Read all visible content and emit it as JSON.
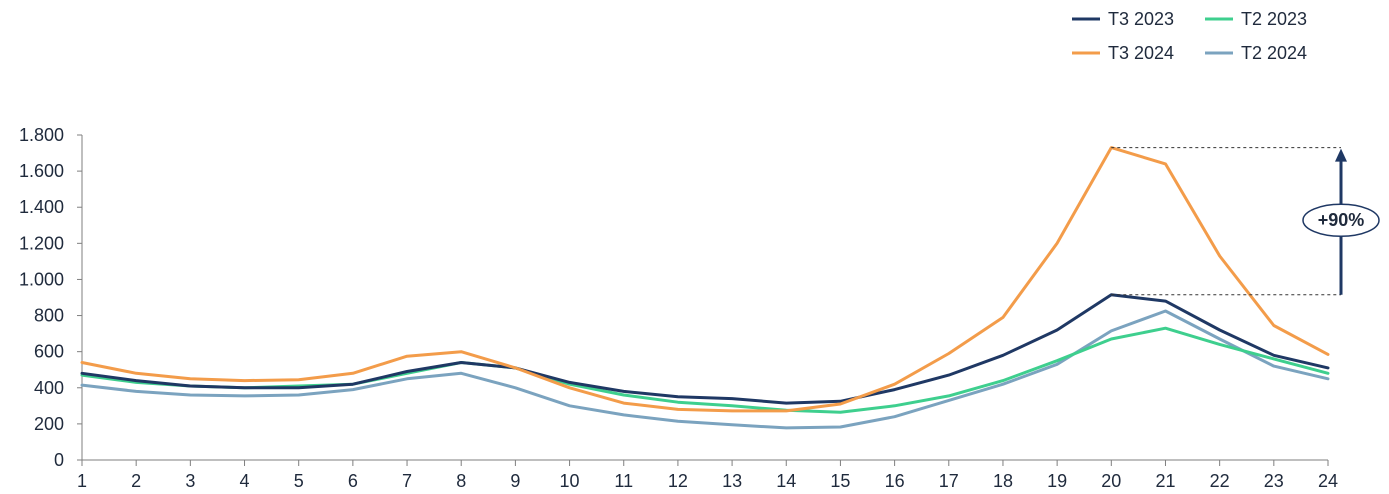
{
  "chart_data": {
    "type": "line",
    "title": "",
    "xlabel": "",
    "ylabel": "",
    "x": [
      1,
      2,
      3,
      4,
      5,
      6,
      7,
      8,
      9,
      10,
      11,
      12,
      13,
      14,
      15,
      16,
      17,
      18,
      19,
      20,
      21,
      22,
      23,
      24
    ],
    "x_tick_labels": [
      "1",
      "2",
      "3",
      "4",
      "5",
      "6",
      "7",
      "8",
      "9",
      "10",
      "11",
      "12",
      "13",
      "14",
      "15",
      "16",
      "17",
      "18",
      "19",
      "20",
      "21",
      "22",
      "23",
      "24"
    ],
    "ylim": [
      0,
      1800
    ],
    "y_ticks": [
      0,
      200,
      400,
      600,
      800,
      1000,
      1200,
      1400,
      1600,
      1800
    ],
    "y_tick_labels": [
      "0",
      "200",
      "400",
      "600",
      "800",
      "1.000",
      "1.200",
      "1.400",
      "1.600",
      "1.800"
    ],
    "grid": false,
    "legend_position": "top-right",
    "series": [
      {
        "name": "T3 2023",
        "color": "#1f3864",
        "values": [
          480,
          440,
          410,
          400,
          400,
          420,
          490,
          540,
          510,
          430,
          380,
          350,
          340,
          315,
          325,
          390,
          470,
          580,
          720,
          915,
          880,
          720,
          580,
          510
        ]
      },
      {
        "name": "T2 2023",
        "color": "#3ecf8e",
        "values": [
          470,
          430,
          410,
          400,
          410,
          420,
          480,
          540,
          510,
          420,
          360,
          320,
          300,
          275,
          265,
          300,
          355,
          440,
          550,
          670,
          730,
          640,
          560,
          480
        ]
      },
      {
        "name": "T3 2024",
        "color": "#f39c4a",
        "values": [
          540,
          480,
          450,
          440,
          445,
          480,
          575,
          600,
          510,
          400,
          315,
          280,
          272,
          272,
          310,
          420,
          590,
          790,
          1200,
          1730,
          1640,
          1130,
          745,
          585
        ]
      },
      {
        "name": "T2 2024",
        "color": "#7ba3bf",
        "values": [
          415,
          380,
          360,
          355,
          360,
          390,
          450,
          480,
          400,
          300,
          250,
          215,
          195,
          178,
          183,
          240,
          330,
          420,
          530,
          715,
          825,
          670,
          520,
          450
        ]
      }
    ],
    "annotations": [
      {
        "text": "+90%",
        "type": "arrow",
        "from_value": 915,
        "to_value": 1730,
        "x": 20
      }
    ]
  }
}
